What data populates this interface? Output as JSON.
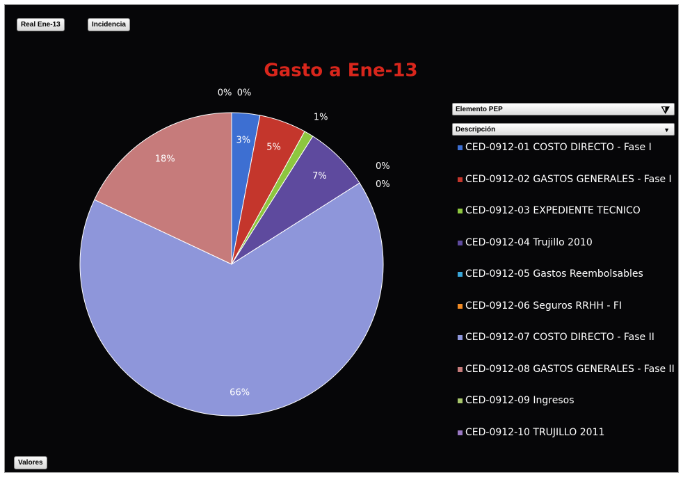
{
  "chart_data": {
    "type": "pie",
    "title": "Gasto a Ene-13",
    "buttons": {
      "top": [
        "Real Ene-13",
        "Incidencia"
      ],
      "bottom": "Valores"
    },
    "legend_fields": [
      "Elemento PEP",
      "Descripción"
    ],
    "categories": [
      "CED-0912-01 COSTO DIRECTO - Fase I",
      "CED-0912-02 GASTOS GENERALES - Fase I",
      "CED-0912-03 EXPEDIENTE TECNICO",
      "CED-0912-04 Trujillo 2010",
      "CED-0912-05 Gastos Reembolsables",
      "CED-0912-06 Seguros RRHH - FI",
      "CED-0912-07 COSTO DIRECTO - Fase II",
      "CED-0912-08 GASTOS GENERALES - Fase II",
      "CED-0912-09 Ingresos",
      "CED-0912-10 TRUJILLO 2011"
    ],
    "values": [
      3,
      5,
      1,
      7,
      0,
      0,
      66,
      18,
      0,
      0
    ],
    "value_labels": [
      "3%",
      "5%",
      "1%",
      "7%",
      "0%",
      "0%",
      "66%",
      "18%",
      "0%",
      "0%"
    ],
    "colors": [
      "#3d6fd2",
      "#c4362c",
      "#8dc63f",
      "#5e4a9e",
      "#3aa6d8",
      "#f08a24",
      "#8e96da",
      "#c67b7b",
      "#a7c56b",
      "#9a78c4"
    ]
  }
}
